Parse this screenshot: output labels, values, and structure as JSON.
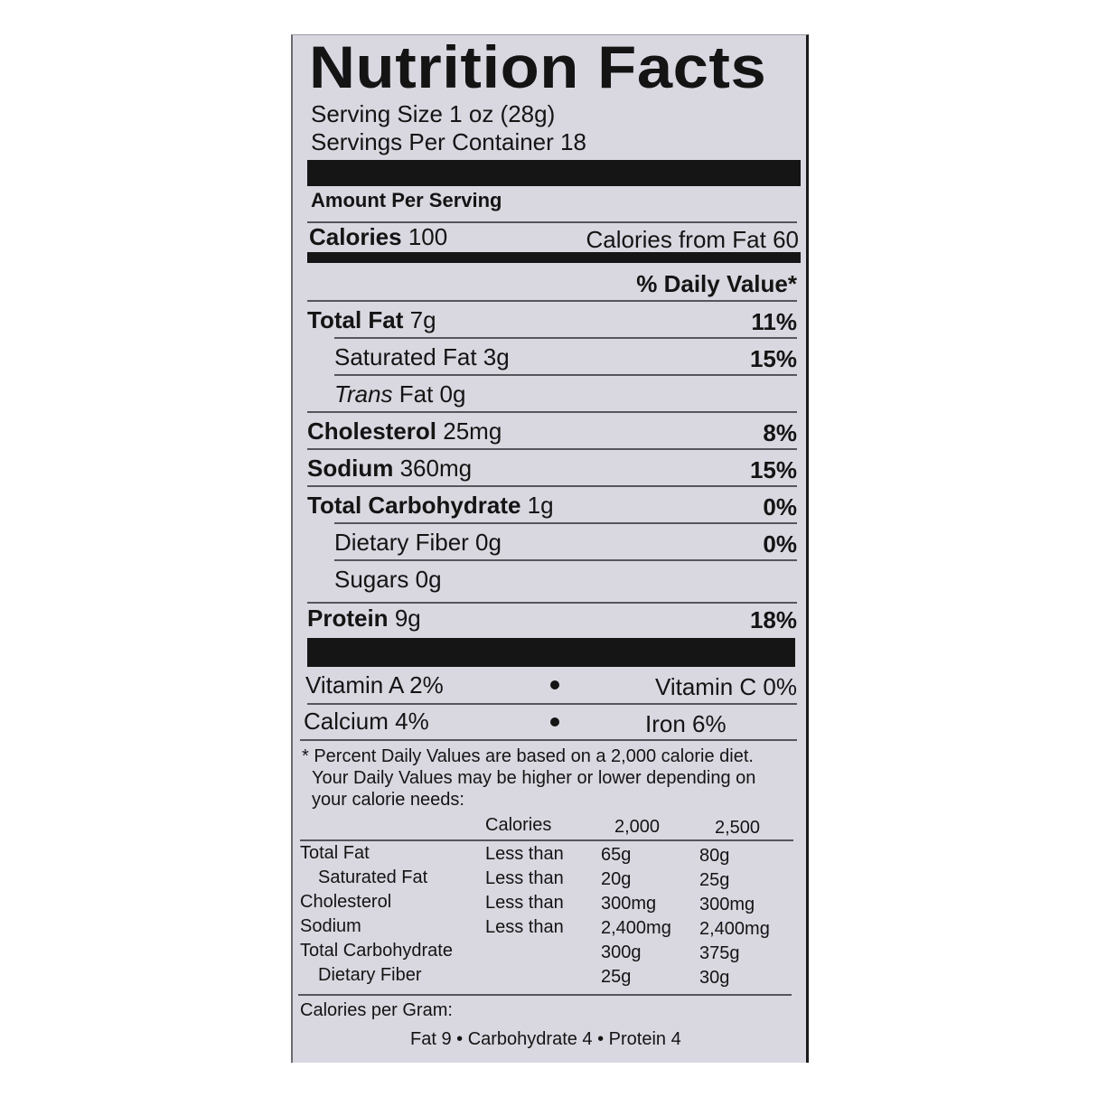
{
  "title": "Nutrition Facts",
  "serving_size": "Serving Size 1 oz (28g)",
  "servings_per_container": "Servings Per Container 18",
  "amount_per_serving": "Amount Per Serving",
  "calories": {
    "label": "Calories",
    "value": "100",
    "from_fat": "Calories from Fat 60"
  },
  "daily_value_header": "% Daily Value*",
  "nutrients": [
    {
      "name": "Total Fat",
      "amount": "7g",
      "dv": "11%"
    },
    {
      "name": "Saturated Fat 3g",
      "amount": "",
      "dv": "15%"
    },
    {
      "name": "Trans",
      "amount": "Fat 0g",
      "dv": ""
    },
    {
      "name": "Cholesterol",
      "amount": "25mg",
      "dv": "8%"
    },
    {
      "name": "Sodium",
      "amount": "360mg",
      "dv": "15%"
    },
    {
      "name": "Total Carbohydrate",
      "amount": "1g",
      "dv": "0%"
    },
    {
      "name": "Dietary Fiber 0g",
      "amount": "",
      "dv": "0%"
    },
    {
      "name": "Sugars 0g",
      "amount": "",
      "dv": ""
    },
    {
      "name": "Protein",
      "amount": "9g",
      "dv": "18%"
    }
  ],
  "vitamins": {
    "vitamin_a": "Vitamin A 2%",
    "vitamin_c": "Vitamin C 0%",
    "calcium": "Calcium 4%",
    "iron": "Iron 6%"
  },
  "footnote": [
    "* Percent Daily Values are based on a 2,000 calorie diet.",
    "Your Daily Values may be higher or lower depending on",
    "your calorie needs:"
  ],
  "dv_table": {
    "header": [
      "Calories",
      "2,000",
      "2,500"
    ],
    "rows": [
      [
        "Total Fat",
        "Less than",
        "65g",
        "80g"
      ],
      [
        "Saturated Fat",
        "Less than",
        "20g",
        "25g"
      ],
      [
        "Cholesterol",
        "Less than",
        "300mg",
        "300mg"
      ],
      [
        "Sodium",
        "Less than",
        "2,400mg",
        "2,400mg"
      ],
      [
        "Total Carbohydrate",
        "",
        "300g",
        "375g"
      ],
      [
        "Dietary Fiber",
        "",
        "25g",
        "30g"
      ]
    ]
  },
  "calories_per_gram": {
    "label": "Calories per Gram:",
    "values": "Fat 9 • Carbohydrate 4 • Protein 4"
  }
}
